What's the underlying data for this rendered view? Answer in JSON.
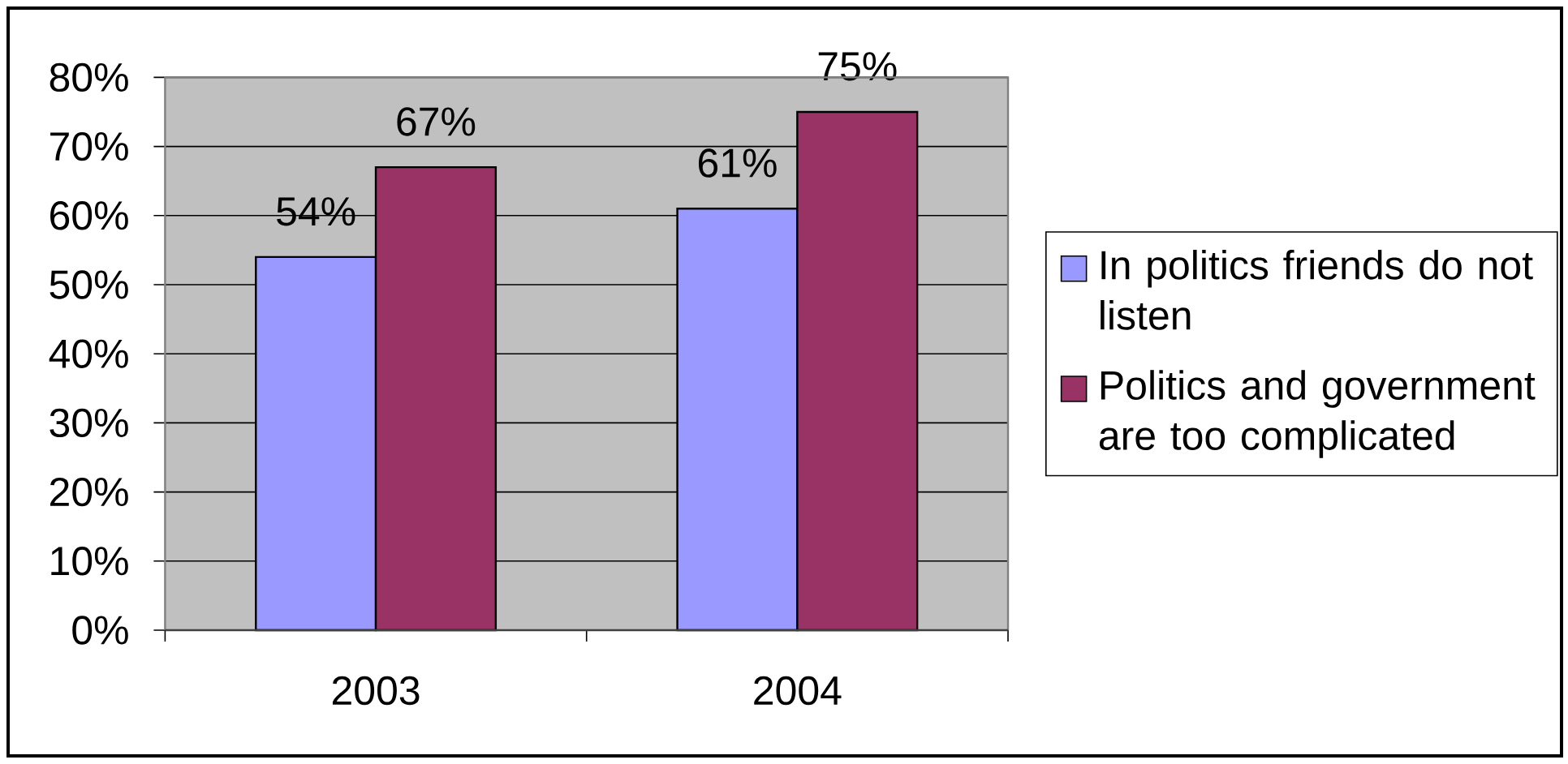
{
  "chart_data": {
    "type": "bar",
    "categories": [
      "2003",
      "2004"
    ],
    "series": [
      {
        "name": "In politics friends do not listen",
        "color": "#9999ff",
        "values": [
          54,
          61
        ],
        "value_labels": [
          "54%",
          "61%"
        ]
      },
      {
        "name": "Politics and government are too complicated",
        "color": "#993366",
        "values": [
          67,
          75
        ],
        "value_labels": [
          "67%",
          "75%"
        ]
      }
    ],
    "ylim": [
      0,
      80
    ],
    "yticks": [
      {
        "value": 0,
        "label": "0%"
      },
      {
        "value": 10,
        "label": "10%"
      },
      {
        "value": 20,
        "label": "20%"
      },
      {
        "value": 30,
        "label": "30%"
      },
      {
        "value": 40,
        "label": "40%"
      },
      {
        "value": 50,
        "label": "50%"
      },
      {
        "value": 60,
        "label": "60%"
      },
      {
        "value": 70,
        "label": "70%"
      },
      {
        "value": 80,
        "label": "80%"
      }
    ],
    "grid": "y",
    "legend": "right"
  }
}
